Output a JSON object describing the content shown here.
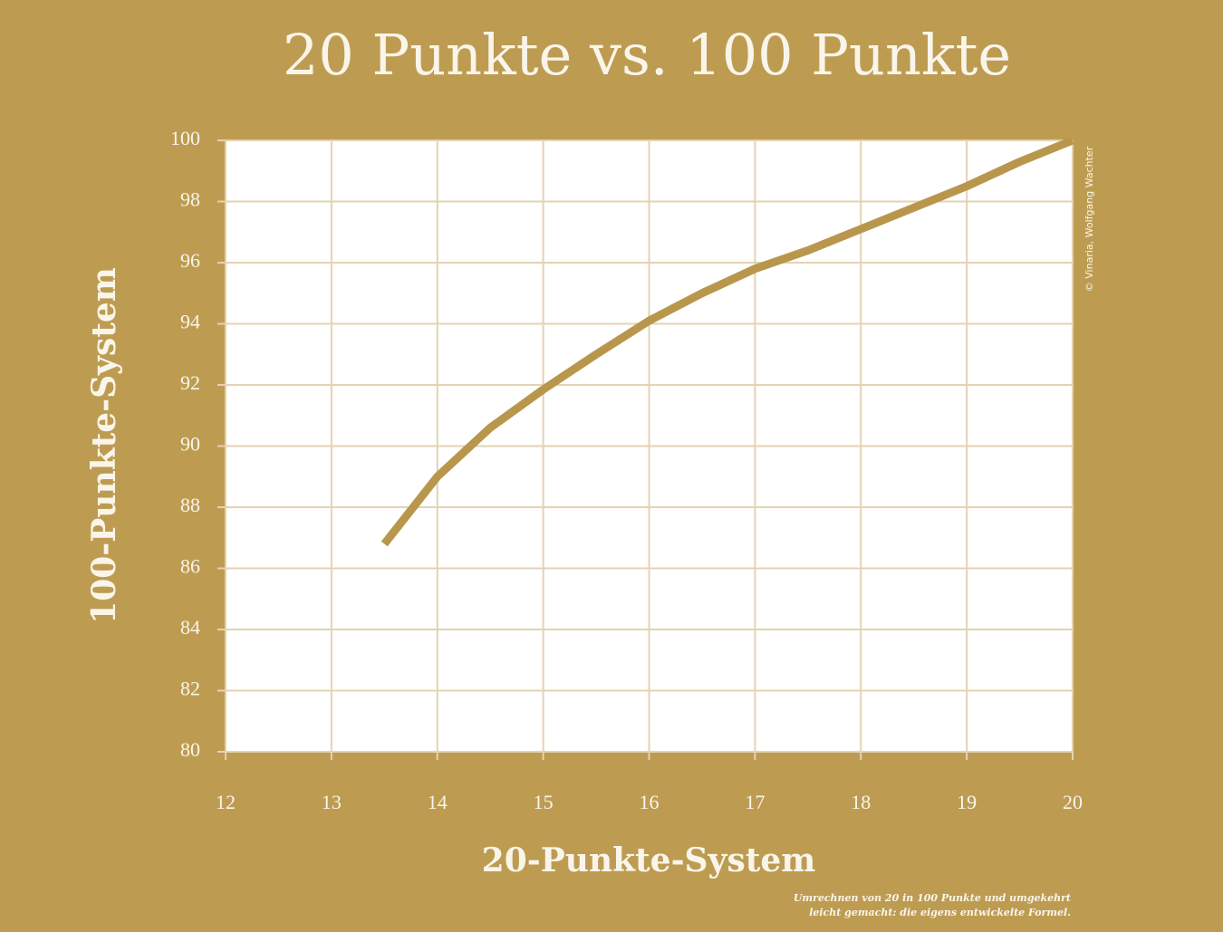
{
  "chart_data": {
    "type": "line",
    "title": "20 Punkte vs. 100 Punkte",
    "x_label": "20-Punkte-System",
    "y_label": "100-Punkte-System",
    "credit": "© Vinaria, Wolfgang Wachter",
    "note": [
      "Umrechnen von 20 in 100 Punkte und umgekehrt",
      "leicht gemacht: die eigens entwickelte Formel."
    ],
    "x": [
      13.5,
      14,
      14.5,
      15,
      15.5,
      16,
      16.5,
      17,
      17.5,
      18,
      18.5,
      19,
      19.5,
      20
    ],
    "series": [
      {
        "name": "100-Punkte-System",
        "color": "#b8974d",
        "values": [
          86.8,
          89.0,
          90.6,
          91.85,
          93.0,
          94.1,
          95.0,
          95.8,
          96.4,
          97.1,
          97.8,
          98.5,
          99.3,
          100
        ]
      }
    ],
    "xlim": [
      12,
      20
    ],
    "ylim": [
      80,
      100
    ],
    "xticks": [
      12,
      13,
      14,
      15,
      16,
      17,
      18,
      19,
      20
    ],
    "yticks": [
      80,
      82,
      84,
      86,
      88,
      90,
      92,
      94,
      96,
      98,
      100
    ],
    "grid": true,
    "background": "#bd9c52",
    "plot_background": "#ffffff",
    "grid_color": "#e3d3b3"
  }
}
